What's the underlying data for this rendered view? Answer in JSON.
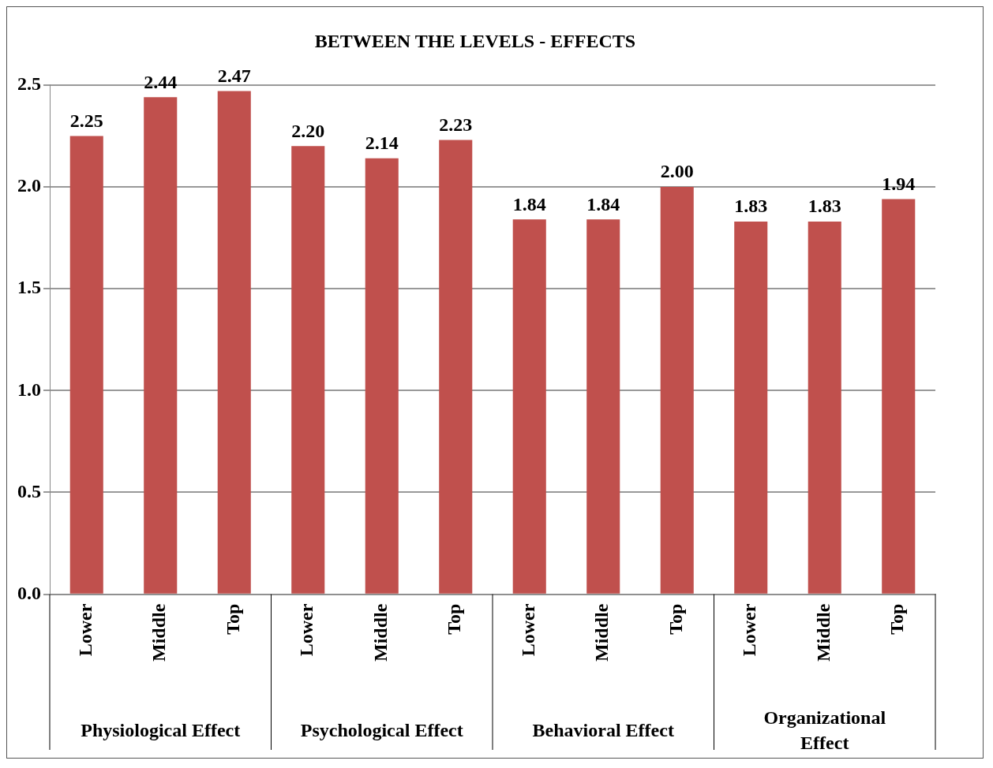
{
  "chart_data": {
    "type": "bar",
    "title": "BETWEEN THE LEVELS - EFFECTS",
    "categories": [
      "Lower",
      "Middle",
      "Top",
      "Lower",
      "Middle",
      "Top",
      "Lower",
      "Middle",
      "Top",
      "Lower",
      "Middle",
      "Top"
    ],
    "values": [
      2.25,
      2.44,
      2.47,
      2.2,
      2.14,
      2.23,
      1.84,
      1.84,
      2.0,
      1.83,
      1.83,
      1.94
    ],
    "value_labels": [
      "2.25",
      "2.44",
      "2.47",
      "2.20",
      "2.14",
      "2.23",
      "1.84",
      "1.84",
      "2.00",
      "1.83",
      "1.83",
      "1.94"
    ],
    "color": "#c0504d",
    "ylim": [
      0,
      2.5
    ],
    "yticks": [
      {
        "value": 0,
        "label": "0.0"
      },
      {
        "value": 0.5,
        "label": "0.5"
      },
      {
        "value": 1,
        "label": "1.0"
      },
      {
        "value": 1.5,
        "label": "1.5"
      },
      {
        "value": 2,
        "label": "2.0"
      },
      {
        "value": 2.5,
        "label": "2.5"
      }
    ],
    "grid": "y",
    "annotations": [
      "Physiological Effect",
      "Psychological Effect",
      "Behavioral Effect",
      "Organizational Effect"
    ]
  }
}
